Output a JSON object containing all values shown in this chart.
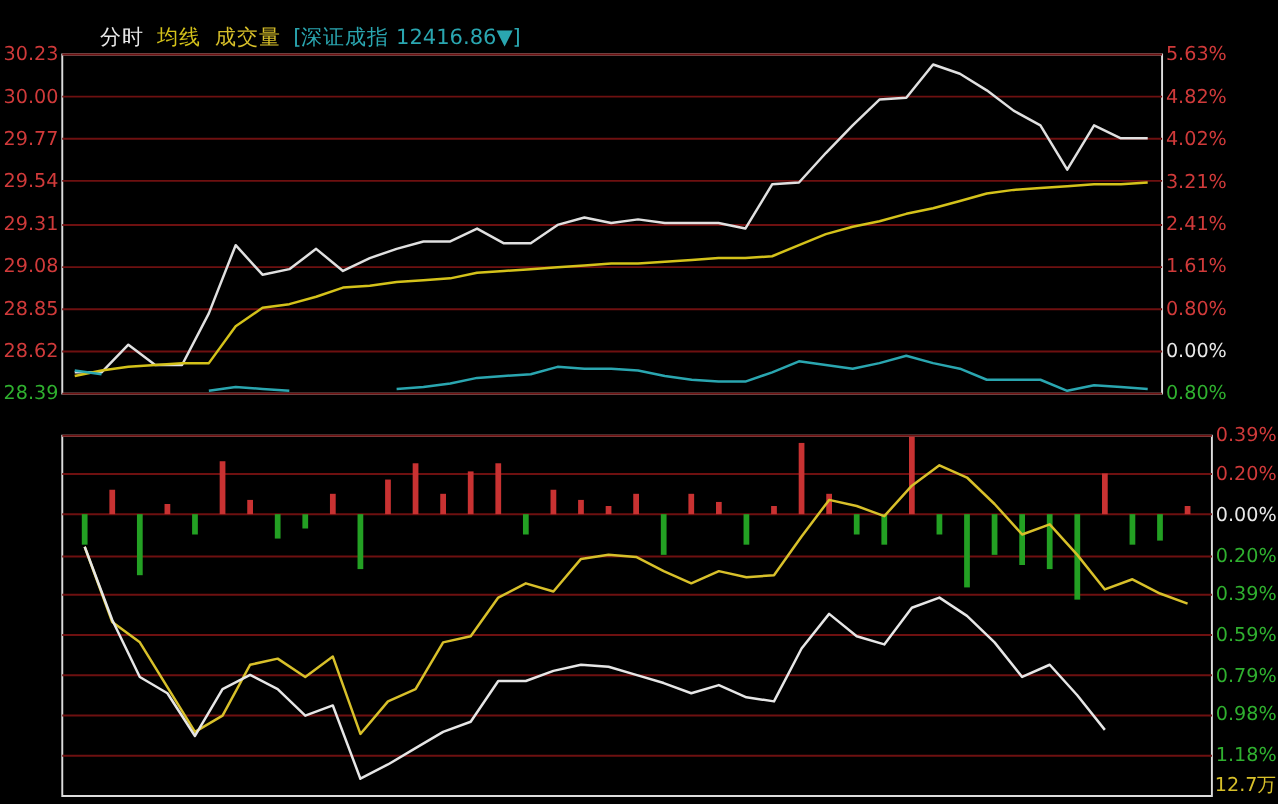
{
  "chart_data": [
    {
      "type": "line",
      "title": "分时",
      "annotations": [
        "成交量"
      ],
      "categories": [
        null,
        null,
        null,
        null,
        null,
        null,
        null,
        null,
        null,
        null,
        null,
        null,
        null,
        null,
        null,
        null,
        null,
        null,
        null,
        null,
        null,
        null,
        null,
        null,
        null,
        null,
        null,
        null,
        null,
        null,
        null,
        null,
        null,
        null,
        null,
        null,
        null,
        null,
        null,
        null,
        null
      ],
      "ylim": [
        28.39,
        30.23
      ],
      "yticks": [
        {
          "value": 30.23,
          "label": "30.23"
        },
        {
          "value": 30.0,
          "label": "30.00"
        },
        {
          "value": 29.77,
          "label": "29.77"
        },
        {
          "value": 29.54,
          "label": "29.54"
        },
        {
          "value": 29.31,
          "label": "29.31"
        },
        {
          "value": 29.08,
          "label": "29.08"
        },
        {
          "value": 28.85,
          "label": "28.85"
        },
        {
          "value": 28.62,
          "label": "28.62"
        },
        {
          "value": 28.39,
          "label": "28.39"
        }
      ],
      "y2lim": [
        -0.8,
        5.63
      ],
      "y2ticks": [
        {
          "value": 5.63,
          "label": "5.63%"
        },
        {
          "value": 4.82,
          "label": "4.82%"
        },
        {
          "value": 4.02,
          "label": "4.02%"
        },
        {
          "value": 3.21,
          "label": "3.21%"
        },
        {
          "value": 2.41,
          "label": "2.41%"
        },
        {
          "value": 1.61,
          "label": "1.61%"
        },
        {
          "value": 0.8,
          "label": "0.80%"
        },
        {
          "value": 0.0,
          "label": "0.00%"
        },
        {
          "value": -0.8,
          "label": "0.80%"
        }
      ],
      "grid": true,
      "series": [
        {
          "color": "#e0e0e0",
          "values": [
            28.5,
            28.5,
            28.65,
            28.54,
            28.54,
            28.82,
            29.19,
            29.03,
            29.06,
            29.17,
            29.05,
            29.12,
            29.17,
            29.21,
            29.21,
            29.28,
            29.2,
            29.2,
            29.3,
            29.34,
            29.31,
            29.33,
            29.31,
            29.31,
            29.31,
            29.28,
            29.52,
            29.53,
            29.69,
            29.84,
            29.98,
            29.99,
            30.17,
            30.12,
            30.03,
            29.92,
            29.84,
            29.6,
            29.84,
            29.77,
            29.77
          ]
        },
        {
          "name": "均线",
          "color": "#d4c21a",
          "values": [
            28.48,
            28.51,
            28.53,
            28.54,
            28.55,
            28.55,
            28.75,
            28.85,
            28.87,
            28.91,
            28.96,
            28.97,
            28.99,
            29.0,
            29.01,
            29.04,
            29.05,
            29.06,
            29.07,
            29.08,
            29.09,
            29.09,
            29.1,
            29.11,
            29.12,
            29.12,
            29.13,
            29.19,
            29.25,
            29.29,
            29.32,
            29.36,
            29.39,
            29.43,
            29.47,
            29.49,
            29.5,
            29.51,
            29.52,
            29.52,
            29.53
          ]
        },
        {
          "name": "[深证成指 12416.86▼]",
          "color": "#2aa6b0",
          "values": [
            28.51,
            28.49,
            null,
            null,
            null,
            28.4,
            28.42,
            28.41,
            28.4,
            null,
            null,
            null,
            28.41,
            28.42,
            28.44,
            28.47,
            28.48,
            28.49,
            28.53,
            28.52,
            28.52,
            28.51,
            28.48,
            28.46,
            28.45,
            28.45,
            28.5,
            28.56,
            28.54,
            28.52,
            28.55,
            28.59,
            28.55,
            28.52,
            28.46,
            28.46,
            28.46,
            28.4,
            28.43,
            28.42,
            28.41
          ]
        }
      ]
    },
    {
      "type": "bar",
      "annotations": [
        "12.7万"
      ],
      "categories": [
        null,
        null,
        null,
        null,
        null,
        null,
        null,
        null,
        null,
        null,
        null,
        null,
        null,
        null,
        null,
        null,
        null,
        null,
        null,
        null,
        null,
        null,
        null,
        null,
        null,
        null,
        null,
        null,
        null,
        null,
        null,
        null,
        null,
        null,
        null,
        null,
        null,
        null,
        null,
        null,
        null
      ],
      "ylim": [
        -1.38,
        0.39
      ],
      "yticks": [
        {
          "value": 0.39,
          "label": "0.39%"
        },
        {
          "value": 0.2,
          "label": "0.20%"
        },
        {
          "value": 0.0,
          "label": "0.00%"
        },
        {
          "value": -0.2,
          "label": "0.20%"
        },
        {
          "value": -0.39,
          "label": "0.39%"
        },
        {
          "value": -0.59,
          "label": "0.59%"
        },
        {
          "value": -0.79,
          "label": "0.79%"
        },
        {
          "value": -0.98,
          "label": "0.98%"
        },
        {
          "value": -1.18,
          "label": "1.18%"
        }
      ],
      "grid": true,
      "series": [
        {
          "type": "bar",
          "values": [
            -0.15,
            0.12,
            -0.3,
            0.05,
            -0.1,
            0.26,
            0.07,
            -0.12,
            -0.07,
            0.1,
            -0.27,
            0.17,
            0.25,
            0.1,
            0.21,
            0.25,
            -0.1,
            0.12,
            0.07,
            0.04,
            0.1,
            -0.2,
            0.1,
            0.06,
            -0.15,
            0.04,
            0.35,
            0.1,
            -0.1,
            -0.15,
            0.38,
            -0.1,
            -0.36,
            -0.2,
            -0.25,
            -0.27,
            -0.42,
            0.2,
            -0.15,
            -0.13,
            0.04
          ],
          "colors": [
            "#23a023",
            "#c83232",
            "#23a023",
            "#c83232",
            "#23a023",
            "#c83232",
            "#c83232",
            "#23a023",
            "#23a023",
            "#c83232",
            "#23a023",
            "#c83232",
            "#c83232",
            "#c83232",
            "#c83232",
            "#c83232",
            "#23a023",
            "#c83232",
            "#c83232",
            "#c83232",
            "#c83232",
            "#23a023",
            "#c83232",
            "#c83232",
            "#23a023",
            "#c83232",
            "#c83232",
            "#c83232",
            "#23a023",
            "#23a023",
            "#c83232",
            "#23a023",
            "#23a023",
            "#23a023",
            "#23a023",
            "#23a023",
            "#23a023",
            "#c83232",
            "#23a023",
            "#23a023",
            "#c83232"
          ]
        },
        {
          "type": "line",
          "color": "#d8c02a",
          "values": [
            -0.16,
            -0.53,
            -0.63,
            -0.85,
            -1.07,
            -0.99,
            -0.74,
            -0.71,
            -0.8,
            -0.7,
            -1.08,
            -0.92,
            -0.86,
            -0.63,
            -0.6,
            -0.41,
            -0.34,
            -0.38,
            -0.22,
            -0.2,
            -0.21,
            -0.28,
            -0.34,
            -0.28,
            -0.31,
            -0.3,
            -0.11,
            0.07,
            0.04,
            -0.01,
            0.14,
            0.24,
            0.18,
            0.05,
            -0.1,
            -0.05,
            -0.2,
            -0.37,
            -0.32,
            -0.39,
            -0.44
          ]
        },
        {
          "type": "line",
          "color": "#e6e6e6",
          "values": [
            -0.16,
            -0.52,
            -0.8,
            -0.88,
            -1.09,
            -0.86,
            -0.79,
            -0.86,
            -0.99,
            -0.94,
            -1.3,
            -1.23,
            -1.15,
            -1.07,
            -1.02,
            -0.82,
            -0.82,
            -0.77,
            -0.74,
            -0.75,
            -0.79,
            -0.83,
            -0.88,
            -0.84,
            -0.9,
            -0.92,
            -0.66,
            -0.49,
            -0.6,
            -0.64,
            -0.46,
            -0.41,
            -0.5,
            -0.63,
            -0.8,
            -0.74,
            -0.89,
            -1.06,
            null,
            null,
            null
          ]
        }
      ]
    }
  ]
}
